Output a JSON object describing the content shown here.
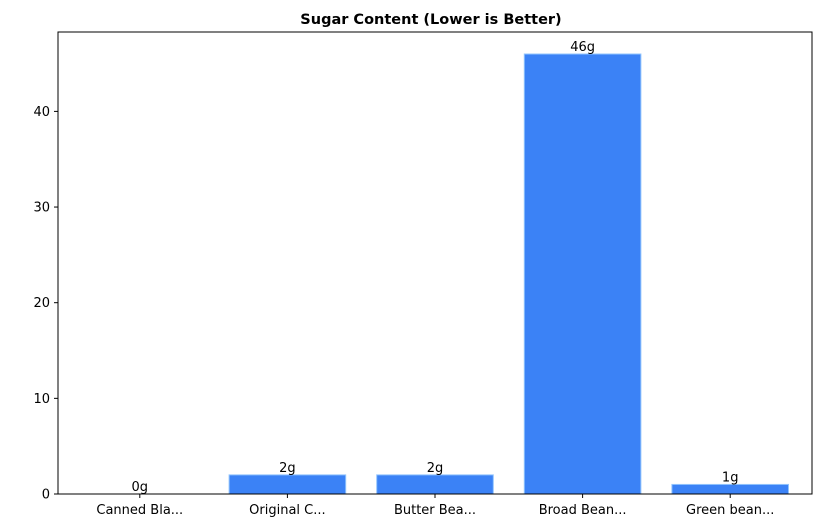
{
  "chart_data": {
    "type": "bar",
    "title": "Sugar Content (Lower is Better)",
    "xlabel": "",
    "ylabel": "",
    "categories": [
      "Canned Bla...",
      "Original C...",
      "Butter Bea...",
      "Broad Bean...",
      "Green bean..."
    ],
    "values": [
      0,
      2,
      2,
      46,
      1
    ],
    "data_labels": [
      "0g",
      "2g",
      "2g",
      "46g",
      "1g"
    ],
    "ylim": [
      0,
      48.3
    ],
    "yticks": [
      0,
      10,
      20,
      30,
      40
    ],
    "ytick_labels": [
      "0",
      "10",
      "20",
      "30",
      "40"
    ],
    "grid": false,
    "bar_color": "#3b82f6",
    "bar_edge_color": "#93c5fd"
  }
}
